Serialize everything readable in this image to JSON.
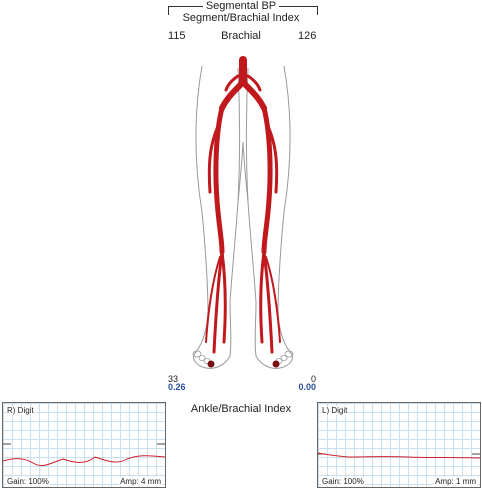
{
  "header": {
    "title": "Segmental BP",
    "subtitle": "Segment/Brachial Index"
  },
  "brachial": {
    "label": "Brachial",
    "right_value": "115",
    "left_value": "126"
  },
  "ankle": {
    "right_pressure": "33",
    "right_index": "0.26",
    "left_pressure": "0",
    "left_index": "0.00"
  },
  "abi_label": "Ankle/Brachial Index",
  "panels": {
    "right": {
      "title": "R) Digit",
      "gain": "Gain: 100%",
      "amp": "Amp: 4 mm"
    },
    "left": {
      "title": "L) Digit",
      "gain": "Gain: 100%",
      "amp": "Amp: 1 mm"
    }
  },
  "colors": {
    "artery": "#c0181c",
    "trace": "#d11f2a",
    "grid": "#c9dff0",
    "index": "#2a4fa0"
  }
}
